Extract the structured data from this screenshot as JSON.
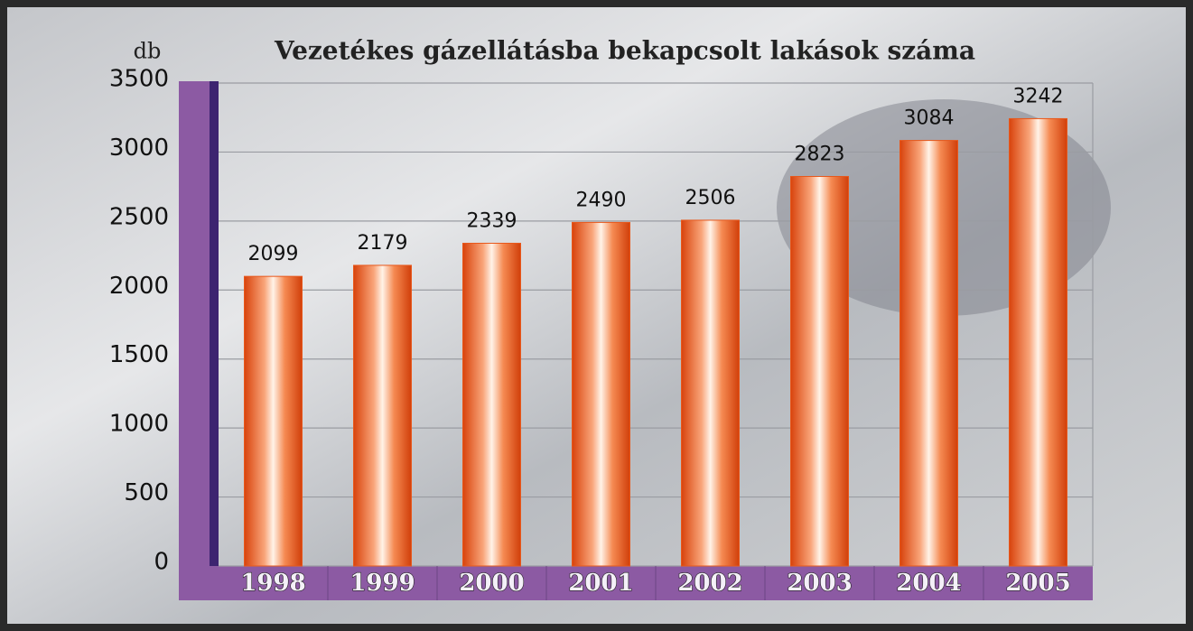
{
  "chart_data": {
    "type": "bar",
    "title": "Vezetékes gázellátásba bekapcsolt lakások száma",
    "y_label": "db",
    "categories": [
      "1998",
      "1999",
      "2000",
      "2001",
      "2002",
      "2003",
      "2004",
      "2005"
    ],
    "values": [
      2099,
      2179,
      2339,
      2490,
      2506,
      2823,
      3084,
      3242
    ],
    "color": "#e8571a",
    "ylim": [
      0,
      3500
    ],
    "yticks": [
      0,
      500,
      1000,
      1500,
      2000,
      2500,
      3000,
      3500
    ],
    "grid": true
  }
}
